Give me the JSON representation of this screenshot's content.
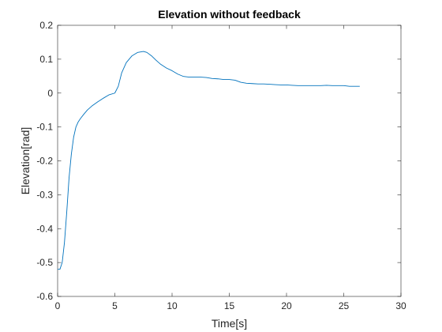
{
  "chart_data": {
    "type": "line",
    "title": "Elevation without feedback",
    "xlabel": "Time[s]",
    "ylabel": "Elevation[rad]",
    "xlim": [
      0,
      30
    ],
    "ylim": [
      -0.6,
      0.2
    ],
    "xticks": [
      0,
      5,
      10,
      15,
      20,
      25,
      30
    ],
    "yticks": [
      -0.6,
      -0.5,
      -0.4,
      -0.3,
      -0.2,
      -0.1,
      0,
      0.1,
      0.2
    ],
    "ytick_labels": [
      "-0.6",
      "-0.5",
      "-0.4",
      "-0.3",
      "-0.2",
      "-0.1",
      "0",
      "0.1",
      "0.2"
    ],
    "grid": false,
    "legend": "none",
    "series": [
      {
        "color": "#0072BD",
        "x": [
          0.0,
          0.2,
          0.4,
          0.6,
          0.8,
          1.0,
          1.2,
          1.4,
          1.6,
          1.8,
          2.0,
          2.3,
          2.6,
          3.0,
          3.5,
          4.0,
          4.5,
          5.0,
          5.3,
          5.6,
          6.0,
          6.5,
          7.0,
          7.5,
          7.8,
          8.2,
          8.6,
          9.0,
          9.5,
          10.0,
          10.5,
          11.0,
          11.5,
          12.0,
          12.5,
          13.0,
          13.5,
          14.0,
          14.5,
          15.0,
          15.5,
          16.0,
          16.5,
          17.0,
          17.5,
          18.0,
          18.5,
          19.0,
          19.5,
          20.0,
          20.5,
          21.0,
          21.5,
          22.0,
          22.5,
          23.0,
          23.5,
          24.0,
          24.5,
          25.0,
          25.5,
          26.0,
          26.4
        ],
        "y": [
          -0.52,
          -0.52,
          -0.5,
          -0.44,
          -0.35,
          -0.25,
          -0.18,
          -0.13,
          -0.1,
          -0.085,
          -0.075,
          -0.062,
          -0.05,
          -0.038,
          -0.026,
          -0.015,
          -0.005,
          0.0,
          0.02,
          0.06,
          0.09,
          0.11,
          0.12,
          0.123,
          0.12,
          0.11,
          0.097,
          0.085,
          0.074,
          0.066,
          0.056,
          0.049,
          0.047,
          0.047,
          0.047,
          0.046,
          0.043,
          0.042,
          0.04,
          0.04,
          0.038,
          0.032,
          0.029,
          0.028,
          0.027,
          0.027,
          0.026,
          0.025,
          0.024,
          0.024,
          0.023,
          0.022,
          0.022,
          0.022,
          0.022,
          0.022,
          0.023,
          0.022,
          0.022,
          0.022,
          0.02,
          0.02,
          0.02
        ]
      }
    ]
  }
}
